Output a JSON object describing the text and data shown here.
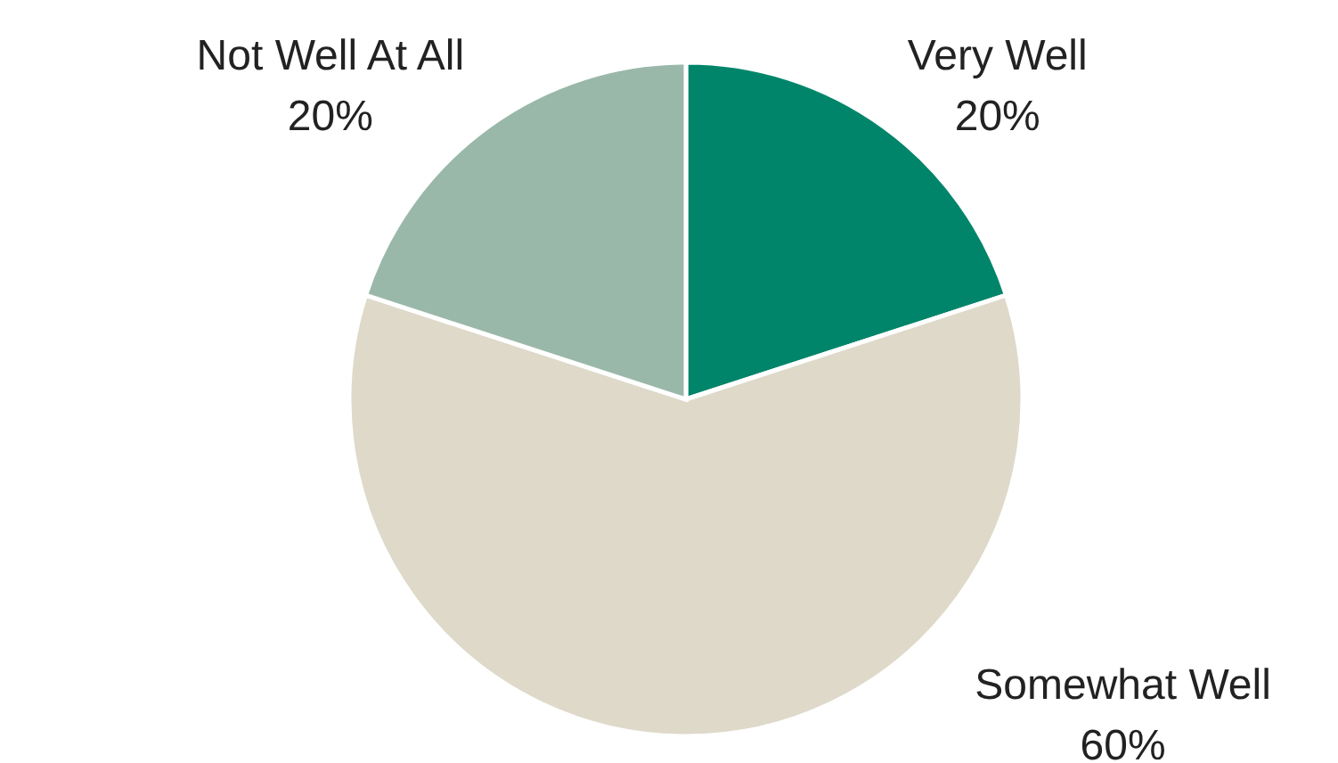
{
  "chart_data": {
    "type": "pie",
    "categories": [
      "Very Well",
      "Somewhat Well",
      "Not Well At All"
    ],
    "values": [
      20,
      60,
      20
    ],
    "colors": [
      "#00856a",
      "#ded9c9",
      "#9ab8aa"
    ],
    "value_labels": [
      "20%",
      "60%",
      "20%"
    ]
  }
}
